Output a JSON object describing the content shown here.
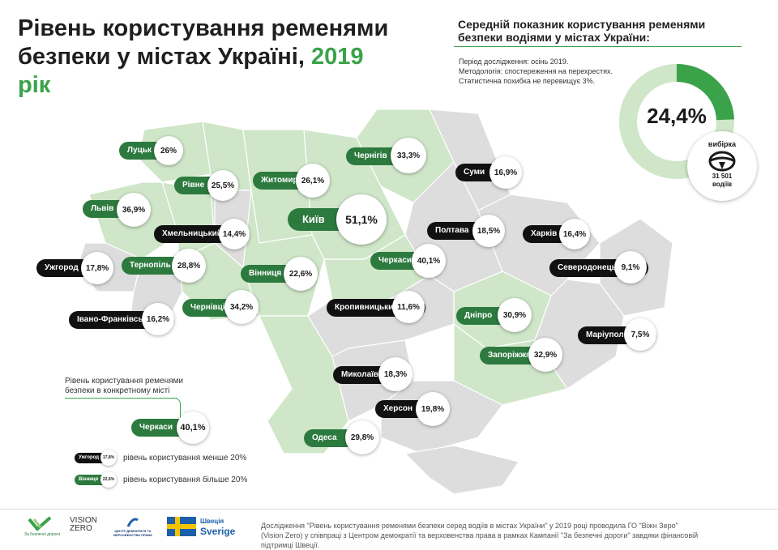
{
  "header": {
    "title_line1": "Рівень користування ременями",
    "title_line2": "безпеки у містах Україні,",
    "title_year": "2019 рік"
  },
  "average": {
    "title": "Середній показник користування ременями безпеки водіями  у містах України:",
    "meta": [
      "Період дослідження: осінь 2019.",
      "Методологія: спостереження на перехрестях.",
      "Статистична похибка не перевищує 3%."
    ],
    "value_text": "24,4%",
    "value": 24.4,
    "sample_label": "вибірка",
    "sample_count": "31 501",
    "sample_unit": "водіїв"
  },
  "cities": [
    {
      "name": "Луцьк",
      "value": "26%",
      "group": "above"
    },
    {
      "name": "Рівне",
      "value": "25,5%",
      "group": "above"
    },
    {
      "name": "Житомир",
      "value": "26,1%",
      "group": "above"
    },
    {
      "name": "Чернігів",
      "value": "33,3%",
      "group": "above"
    },
    {
      "name": "Суми",
      "value": "16,9%",
      "group": "below"
    },
    {
      "name": "Львів",
      "value": "36,9%",
      "group": "above"
    },
    {
      "name": "Київ",
      "value": "51,1%",
      "group": "above"
    },
    {
      "name": "Хмельницький",
      "value": "14,4%",
      "group": "below"
    },
    {
      "name": "Полтава",
      "value": "18,5%",
      "group": "below"
    },
    {
      "name": "Харків",
      "value": "16,4%",
      "group": "below"
    },
    {
      "name": "Ужгород",
      "value": "17,8%",
      "group": "below"
    },
    {
      "name": "Тернопіль",
      "value": "28,8%",
      "group": "above"
    },
    {
      "name": "Вінниця",
      "value": "22,6%",
      "group": "above"
    },
    {
      "name": "Черкаси",
      "value": "40,1%",
      "group": "above"
    },
    {
      "name": "Северодонецьк",
      "value": "9,1%",
      "group": "below"
    },
    {
      "name": "Чернівці",
      "value": "34,2%",
      "group": "above"
    },
    {
      "name": "Кропивницький",
      "value": "11,6%",
      "group": "below"
    },
    {
      "name": "Дніпро",
      "value": "30,9%",
      "group": "above"
    },
    {
      "name": "Івано-Франківськ",
      "value": "16,2%",
      "group": "below"
    },
    {
      "name": "Маріуполь",
      "value": "7,5%",
      "group": "below"
    },
    {
      "name": "Запоріжжя",
      "value": "32,9%",
      "group": "above"
    },
    {
      "name": "Миколаїв",
      "value": "18,3%",
      "group": "below"
    },
    {
      "name": "Херсон",
      "value": "19,8%",
      "group": "below"
    },
    {
      "name": "Одеса",
      "value": "29,8%",
      "group": "above"
    }
  ],
  "legend": {
    "title": "Рівень користування ременями безпеки в конкретному місті",
    "example_city": "Черкаси",
    "example_value": "40,1%",
    "below_city": "Ужгород",
    "below_value": "17,8%",
    "below_text": "рівень користування менше 20%",
    "above_city": "Вінниця",
    "above_value": "22,6%",
    "above_text": "рівень користування більше 20%"
  },
  "footer": {
    "text": "Дослідження \"Рівень користування ременями безпеки серед водіїв в містах України\" у 2019 році проводила ГО \"Віжн Зеро\" (Vision Zero) у співпраці з Центром демократії та верховенства права в рамках Кампанії \"За безпечні дороги\" завдяки фінансовій підтримці Швеції.",
    "logo1_text": "За безпечні дороги",
    "logo2_line1": "VISION",
    "logo2_line2": "ZERO",
    "logo3_text": "ЦЕНТР ДЕМОКРАТІЇ ТА ВЕРХОВЕНСТВА ПРАВА",
    "logo4_line1": "Швеція",
    "logo4_line2": "Sverige"
  },
  "colors": {
    "green": "#3aa34a",
    "dark_green": "#2d7a3f",
    "light_green_region": "#cfe6c8",
    "grey_region": "#dddddd",
    "black": "#111111"
  }
}
